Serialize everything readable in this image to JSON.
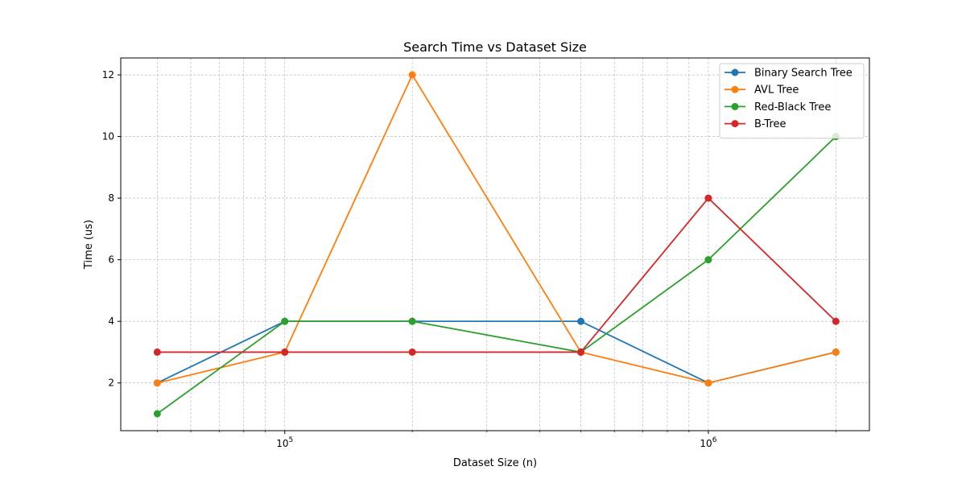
{
  "chart_data": {
    "type": "line",
    "title": "Search Time vs Dataset Size",
    "xlabel": "Dataset Size (n)",
    "ylabel": "Time (us)",
    "x_scale": "log",
    "x": [
      50000,
      100000,
      200000,
      500000,
      1000000,
      2000000
    ],
    "xlim": [
      41000,
      2400000
    ],
    "ylim": [
      0.45,
      12.55
    ],
    "x_major_ticks": [
      {
        "value": 100000,
        "label_base": "10",
        "label_exp": "5"
      },
      {
        "value": 1000000,
        "label_base": "10",
        "label_exp": "6"
      }
    ],
    "y_ticks": [
      2,
      4,
      6,
      8,
      10,
      12
    ],
    "y_tick_labels": [
      "2",
      "4",
      "6",
      "8",
      "10",
      "12"
    ],
    "grid": true,
    "legend_position": "top-right",
    "series": [
      {
        "name": "Binary Search Tree",
        "color": "#1f77b4",
        "values": [
          2,
          4,
          4,
          4,
          2,
          3
        ]
      },
      {
        "name": "AVL Tree",
        "color": "#ff7f0e",
        "values": [
          2,
          3,
          12,
          3,
          2,
          3
        ]
      },
      {
        "name": "Red-Black Tree",
        "color": "#2ca02c",
        "values": [
          1,
          4,
          4,
          3,
          6,
          10
        ]
      },
      {
        "name": "B-Tree",
        "color": "#d62728",
        "values": [
          3,
          3,
          3,
          3,
          8,
          4
        ]
      }
    ]
  }
}
